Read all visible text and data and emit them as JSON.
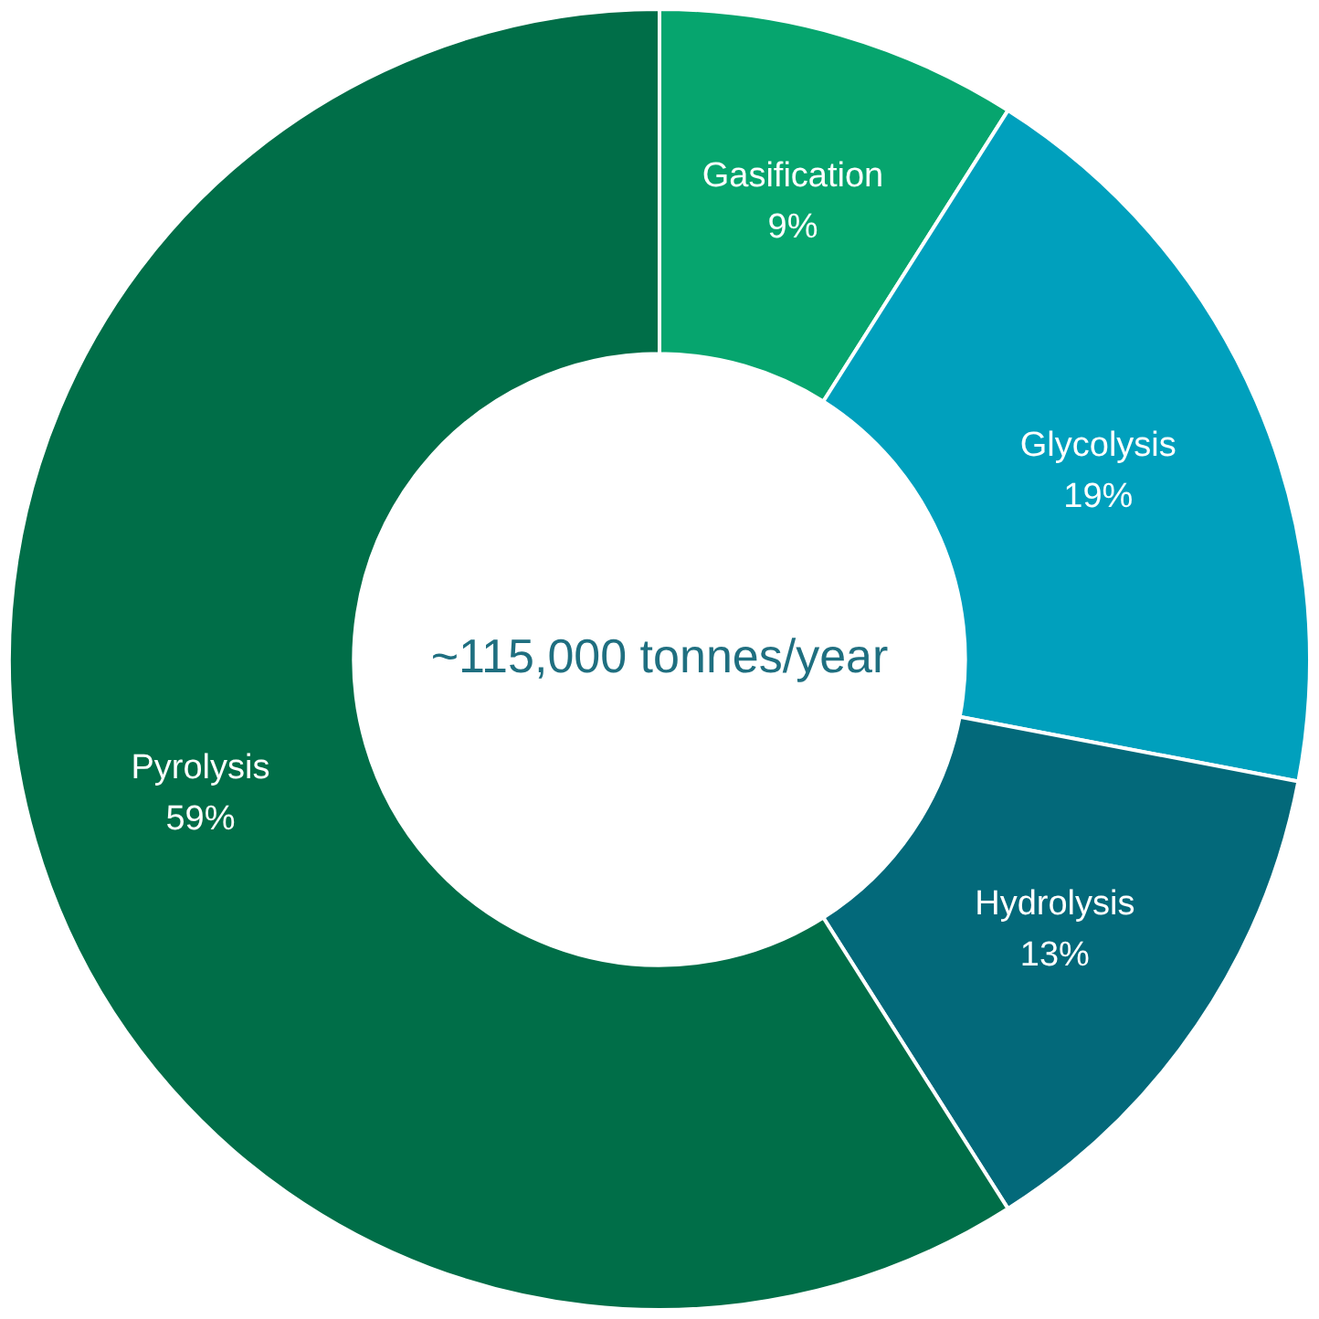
{
  "chart_data": {
    "type": "donut",
    "categories": [
      "Gasification",
      "Glycolysis",
      "Hydrolysis",
      "Pyrolysis"
    ],
    "values": [
      9,
      19,
      13,
      59
    ],
    "value_labels": [
      "9%",
      "19%",
      "13%",
      "59%"
    ],
    "colors": [
      "#06a56e",
      "#00a0bd",
      "#03697a",
      "#006e48"
    ],
    "annotations": [
      "~115,000 tonnes/year"
    ],
    "legend": false
  }
}
